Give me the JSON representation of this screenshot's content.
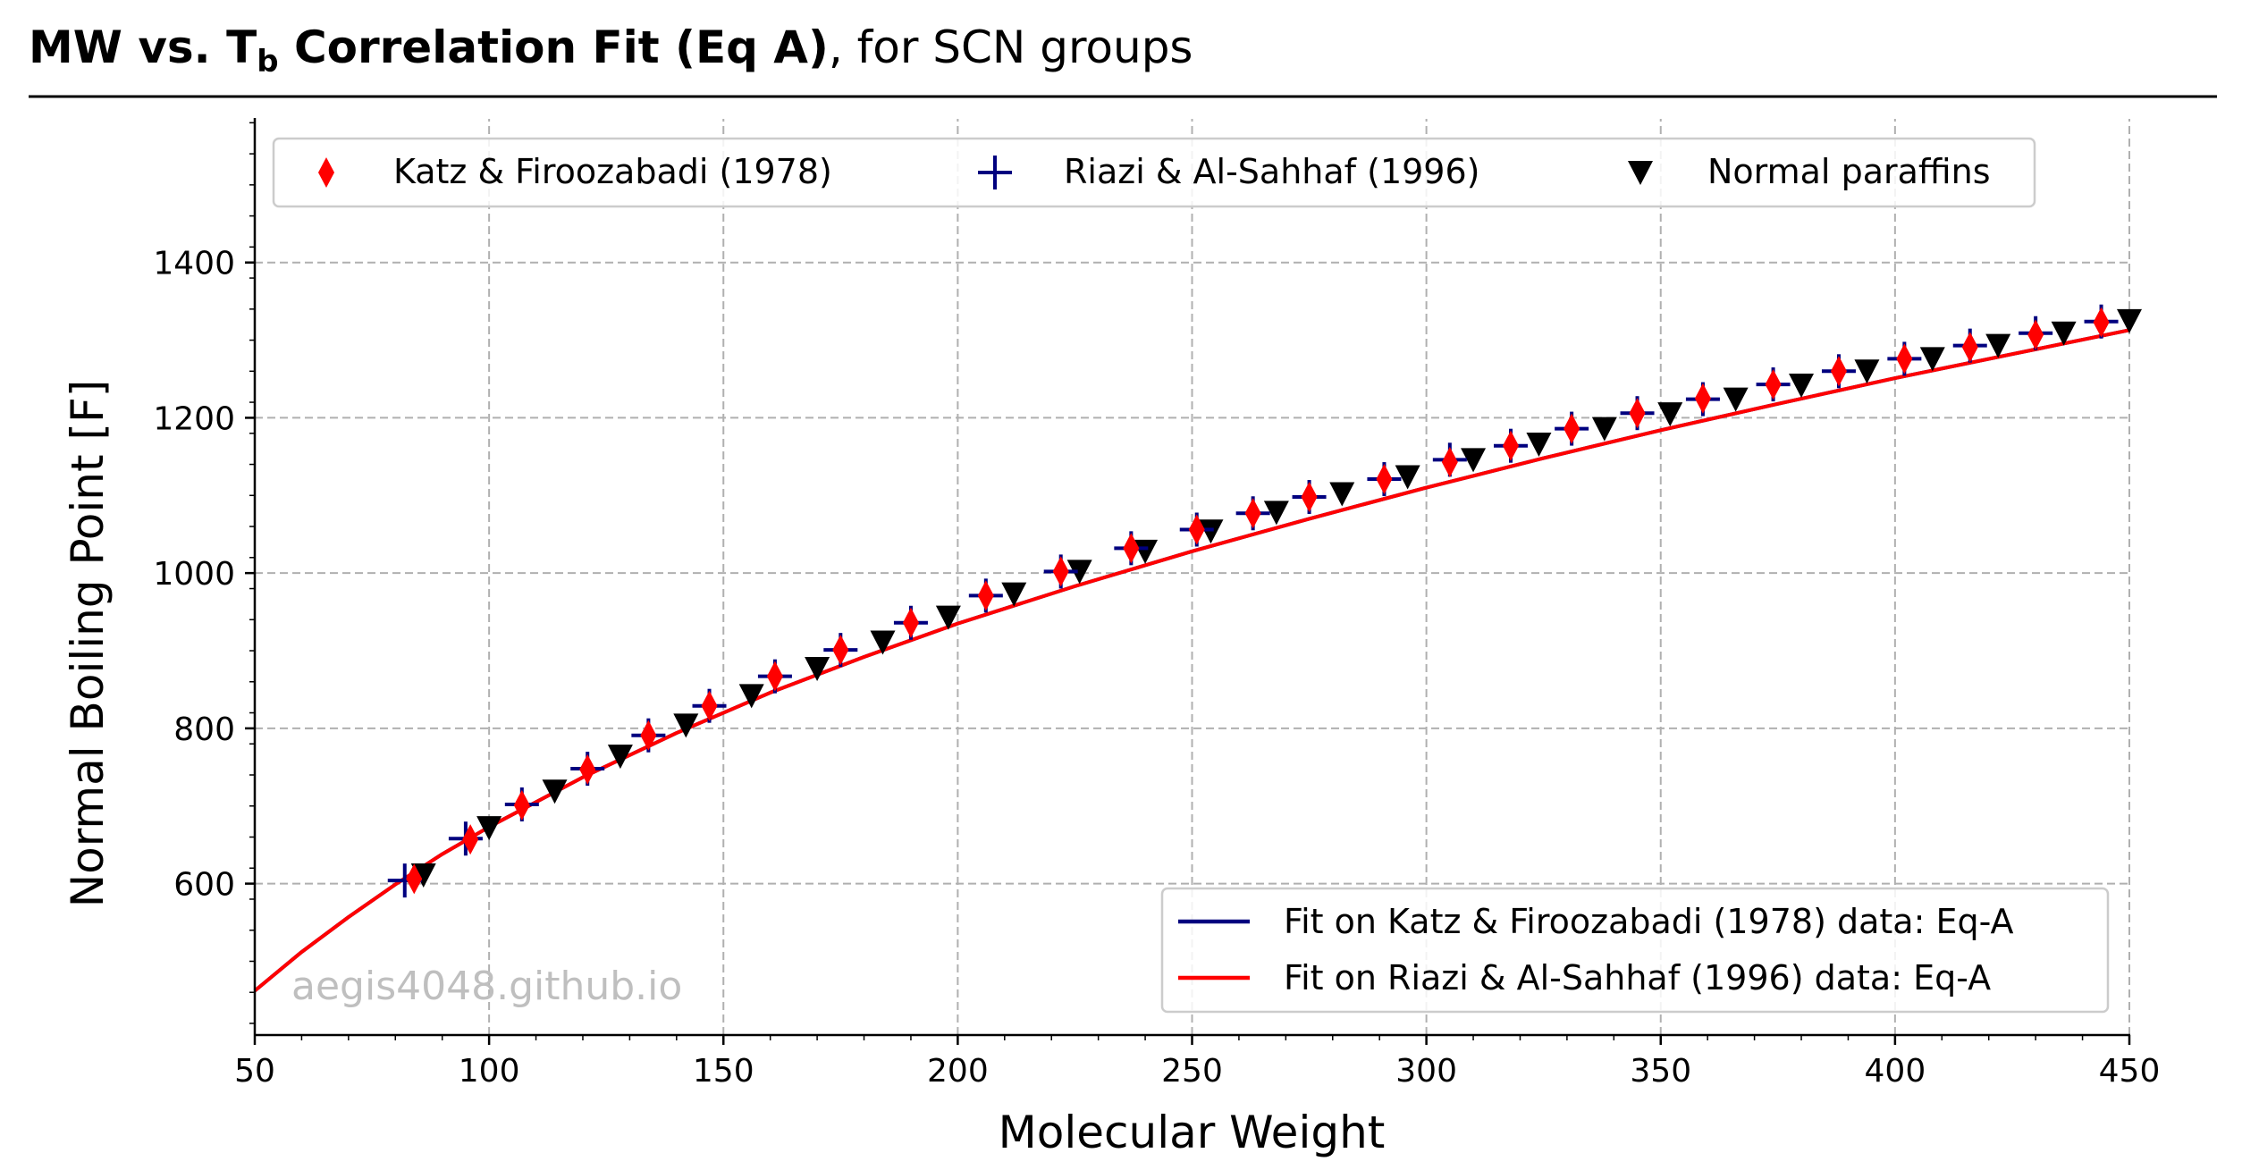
{
  "title": {
    "bold_prefix": "MW vs. ",
    "bold_symbol": "T",
    "bold_subscript": "b",
    "bold_suffix": " Correlation Fit (Eq A)",
    "rest": ", for SCN groups"
  },
  "watermark": "aegis4048.github.io",
  "chart_data": {
    "type": "scatter",
    "title": "MW vs. Tb Correlation Fit (Eq A), for SCN groups",
    "xlabel": "Molecular Weight",
    "ylabel": "Normal Boiling Point [F]",
    "xlim": [
      50,
      450
    ],
    "ylim": [
      405,
      1585
    ],
    "xticks": [
      50,
      100,
      150,
      200,
      250,
      300,
      350,
      400,
      450
    ],
    "yticks": [
      600,
      800,
      1000,
      1200,
      1400
    ],
    "grid": true,
    "series": [
      {
        "name": "Katz & Firoozabadi (1978)",
        "marker": "thin_diamond",
        "color": "#ff0000",
        "x": [
          84,
          96,
          107,
          121,
          134,
          147,
          161,
          175,
          190,
          206,
          222,
          237,
          251,
          263,
          275,
          291,
          305,
          318,
          331,
          345,
          359,
          374,
          388,
          402,
          416,
          430,
          444
        ],
        "y": [
          606,
          657,
          701,
          747,
          791,
          829,
          867,
          901,
          936,
          971,
          1002,
          1032,
          1056,
          1077,
          1098,
          1121,
          1143,
          1164,
          1186,
          1206,
          1225,
          1243,
          1260,
          1276,
          1291,
          1307,
          1323
        ]
      },
      {
        "name": "Riazi & Al-Sahhaf (1996)",
        "marker": "plus",
        "color": "#00007f",
        "x": [
          82,
          95,
          107,
          121,
          134,
          147,
          161,
          175,
          190,
          206,
          222,
          237,
          251,
          263,
          275,
          291,
          305,
          318,
          331,
          345,
          359,
          374,
          388,
          402,
          416,
          430,
          444
        ],
        "y": [
          604,
          658,
          702,
          748,
          791,
          829,
          867,
          901,
          936,
          971,
          1002,
          1032,
          1056,
          1077,
          1098,
          1121,
          1146,
          1164,
          1186,
          1206,
          1224,
          1243,
          1260,
          1276,
          1293,
          1309,
          1324
        ]
      },
      {
        "name": "Normal paraffins",
        "marker": "triangle_down",
        "color": "#000000",
        "x": [
          86,
          100,
          114,
          128,
          142,
          156,
          170,
          184,
          198,
          212,
          226,
          240,
          254,
          268,
          282,
          296,
          310,
          324,
          338,
          352,
          366,
          380,
          394,
          408,
          422,
          436,
          450
        ],
        "y": [
          611,
          672,
          719,
          764,
          804,
          842,
          877,
          911,
          943,
          973,
          1002,
          1028,
          1054,
          1078,
          1102,
          1124,
          1146,
          1166,
          1186,
          1205,
          1224,
          1242,
          1260,
          1276,
          1293,
          1309,
          1325
        ]
      }
    ],
    "fits": [
      {
        "name": "Fit on Katz & Firoozabadi (1978) data: Eq-A",
        "color": "#00007f",
        "x": [
          50,
          60,
          70,
          80,
          90,
          100,
          120,
          140,
          160,
          180,
          200,
          225,
          250,
          275,
          300,
          325,
          350,
          375,
          400,
          425,
          450
        ],
        "y": [
          462,
          512,
          557,
          599,
          638,
          673,
          737,
          794,
          846,
          892,
          935,
          983,
          1028,
          1070,
          1110,
          1148,
          1184,
          1218,
          1251,
          1282,
          1313
        ]
      },
      {
        "name": "Fit on Riazi & Al-Sahhaf (1996) data: Eq-A",
        "color": "#ff0000",
        "x": [
          50,
          60,
          70,
          80,
          90,
          100,
          120,
          140,
          160,
          180,
          200,
          225,
          250,
          275,
          300,
          325,
          350,
          375,
          400,
          425,
          450
        ],
        "y": [
          462,
          512,
          557,
          599,
          638,
          673,
          737,
          794,
          846,
          892,
          935,
          983,
          1028,
          1070,
          1110,
          1148,
          1184,
          1218,
          1251,
          1282,
          1313
        ]
      }
    ],
    "legends": {
      "markers": {
        "placement": "top",
        "ncol": 3
      },
      "lines": {
        "placement": "lower-right"
      }
    }
  }
}
